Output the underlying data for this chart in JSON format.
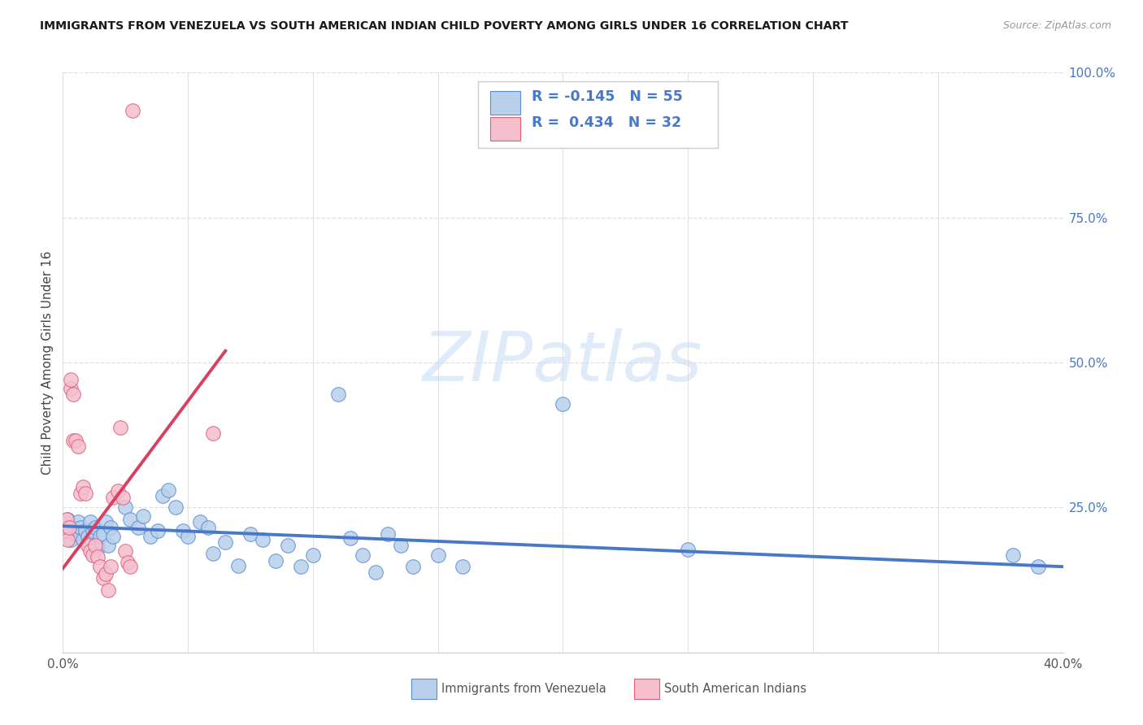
{
  "title": "IMMIGRANTS FROM VENEZUELA VS SOUTH AMERICAN INDIAN CHILD POVERTY AMONG GIRLS UNDER 16 CORRELATION CHART",
  "source": "Source: ZipAtlas.com",
  "ylabel": "Child Poverty Among Girls Under 16",
  "xlim": [
    0.0,
    0.4
  ],
  "ylim": [
    0.0,
    1.0
  ],
  "xtick_positions": [
    0.0,
    0.05,
    0.1,
    0.15,
    0.2,
    0.25,
    0.3,
    0.35,
    0.4
  ],
  "xticklabels": [
    "0.0%",
    "",
    "",
    "",
    "",
    "",
    "",
    "",
    "40.0%"
  ],
  "ytick_positions": [
    0.0,
    0.25,
    0.5,
    0.75,
    1.0
  ],
  "yticklabels_right": [
    "",
    "25.0%",
    "50.0%",
    "75.0%",
    "100.0%"
  ],
  "watermark": "ZIPatlas",
  "blue_R": "-0.145",
  "blue_N": "55",
  "pink_R": "0.434",
  "pink_N": "32",
  "blue_fill": "#b8d0eb",
  "pink_fill": "#f5bfce",
  "blue_edge": "#5b8ed6",
  "pink_edge": "#e0607a",
  "blue_line": "#4878c8",
  "pink_line": "#d84060",
  "grid_color": "#e0e0e0",
  "legend_color": "#4878c8",
  "blue_scatter": [
    [
      0.001,
      0.21
    ],
    [
      0.002,
      0.23
    ],
    [
      0.003,
      0.195
    ],
    [
      0.004,
      0.215
    ],
    [
      0.005,
      0.205
    ],
    [
      0.006,
      0.225
    ],
    [
      0.007,
      0.215
    ],
    [
      0.008,
      0.195
    ],
    [
      0.009,
      0.21
    ],
    [
      0.01,
      0.2
    ],
    [
      0.011,
      0.225
    ],
    [
      0.012,
      0.21
    ],
    [
      0.013,
      0.215
    ],
    [
      0.014,
      0.18
    ],
    [
      0.015,
      0.2
    ],
    [
      0.016,
      0.205
    ],
    [
      0.017,
      0.225
    ],
    [
      0.018,
      0.185
    ],
    [
      0.019,
      0.215
    ],
    [
      0.02,
      0.2
    ],
    [
      0.025,
      0.25
    ],
    [
      0.027,
      0.23
    ],
    [
      0.03,
      0.215
    ],
    [
      0.032,
      0.235
    ],
    [
      0.035,
      0.2
    ],
    [
      0.038,
      0.21
    ],
    [
      0.04,
      0.27
    ],
    [
      0.042,
      0.28
    ],
    [
      0.045,
      0.25
    ],
    [
      0.048,
      0.21
    ],
    [
      0.05,
      0.2
    ],
    [
      0.055,
      0.225
    ],
    [
      0.058,
      0.215
    ],
    [
      0.06,
      0.17
    ],
    [
      0.065,
      0.19
    ],
    [
      0.07,
      0.15
    ],
    [
      0.075,
      0.205
    ],
    [
      0.08,
      0.195
    ],
    [
      0.085,
      0.158
    ],
    [
      0.09,
      0.185
    ],
    [
      0.095,
      0.148
    ],
    [
      0.1,
      0.168
    ],
    [
      0.11,
      0.445
    ],
    [
      0.115,
      0.198
    ],
    [
      0.12,
      0.168
    ],
    [
      0.125,
      0.138
    ],
    [
      0.13,
      0.205
    ],
    [
      0.135,
      0.185
    ],
    [
      0.14,
      0.148
    ],
    [
      0.15,
      0.168
    ],
    [
      0.16,
      0.148
    ],
    [
      0.2,
      0.428
    ],
    [
      0.25,
      0.178
    ],
    [
      0.38,
      0.168
    ],
    [
      0.39,
      0.148
    ]
  ],
  "pink_scatter": [
    [
      0.001,
      0.21
    ],
    [
      0.0015,
      0.23
    ],
    [
      0.002,
      0.195
    ],
    [
      0.0025,
      0.215
    ],
    [
      0.003,
      0.455
    ],
    [
      0.003,
      0.47
    ],
    [
      0.004,
      0.445
    ],
    [
      0.004,
      0.365
    ],
    [
      0.005,
      0.365
    ],
    [
      0.006,
      0.355
    ],
    [
      0.007,
      0.275
    ],
    [
      0.008,
      0.285
    ],
    [
      0.009,
      0.275
    ],
    [
      0.01,
      0.185
    ],
    [
      0.011,
      0.175
    ],
    [
      0.012,
      0.168
    ],
    [
      0.013,
      0.185
    ],
    [
      0.014,
      0.165
    ],
    [
      0.015,
      0.148
    ],
    [
      0.016,
      0.128
    ],
    [
      0.017,
      0.135
    ],
    [
      0.018,
      0.108
    ],
    [
      0.019,
      0.148
    ],
    [
      0.02,
      0.268
    ],
    [
      0.022,
      0.278
    ],
    [
      0.023,
      0.388
    ],
    [
      0.024,
      0.268
    ],
    [
      0.025,
      0.175
    ],
    [
      0.026,
      0.155
    ],
    [
      0.027,
      0.148
    ],
    [
      0.028,
      0.935
    ],
    [
      0.06,
      0.378
    ]
  ],
  "blue_trend": [
    0.0,
    0.218,
    0.4,
    0.148
  ],
  "pink_trend": [
    0.0,
    0.145,
    0.065,
    0.52
  ]
}
